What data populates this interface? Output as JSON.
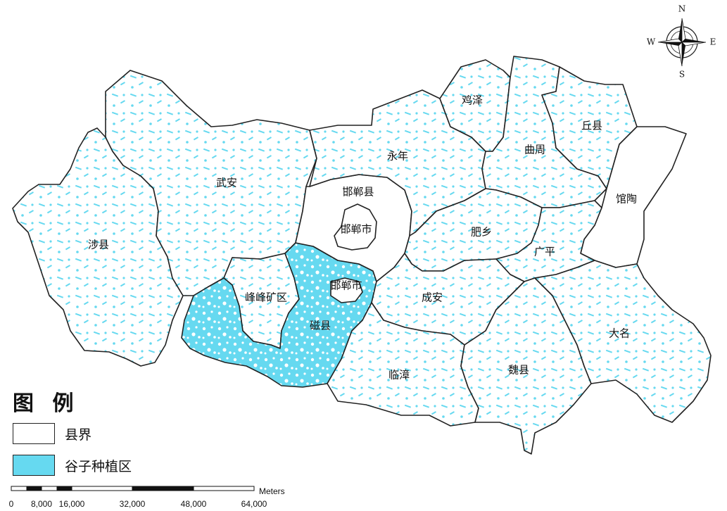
{
  "map": {
    "colors": {
      "millet_area": "#66d9f0",
      "county_fill": "#ffffff",
      "boundary": "#222222"
    },
    "counties": [
      {
        "id": "shexian",
        "label": "涉县",
        "millet": true
      },
      {
        "id": "wuan",
        "label": "武安",
        "millet": true
      },
      {
        "id": "fengfeng",
        "label": "峰峰矿区",
        "millet": true
      },
      {
        "id": "cixian",
        "label": "磁县",
        "millet": true
      },
      {
        "id": "handan-shi-south",
        "label": "邯郸市",
        "millet": true
      },
      {
        "id": "handan-xian",
        "label": "邯郸县",
        "millet": false
      },
      {
        "id": "handan-shi-center",
        "label": "邯郸市",
        "millet": false
      },
      {
        "id": "yongnian",
        "label": "永年",
        "millet": true
      },
      {
        "id": "jize",
        "label": "鸡泽",
        "millet": true
      },
      {
        "id": "quzhou",
        "label": "曲周",
        "millet": true
      },
      {
        "id": "qiuxian",
        "label": "丘县",
        "millet": true
      },
      {
        "id": "guantao",
        "label": "馆陶",
        "millet": false
      },
      {
        "id": "feixiang",
        "label": "肥乡",
        "millet": true
      },
      {
        "id": "guangping",
        "label": "广平",
        "millet": true
      },
      {
        "id": "chengan",
        "label": "成安",
        "millet": true
      },
      {
        "id": "linzhang",
        "label": "临漳",
        "millet": true
      },
      {
        "id": "weixian",
        "label": "魏县",
        "millet": true
      },
      {
        "id": "daming",
        "label": "大名",
        "millet": true
      }
    ]
  },
  "compass": {
    "n": "N",
    "s": "S",
    "e": "E",
    "w": "W"
  },
  "legend": {
    "title": "图 例",
    "items": [
      {
        "label": "县界",
        "swatch": "#ffffff"
      },
      {
        "label": "谷子种植区",
        "swatch": "#66d9f0"
      }
    ]
  },
  "scalebar": {
    "unit": "Meters",
    "ticks": [
      "0",
      "8,000",
      "16,000",
      "32,000",
      "48,000",
      "64,000"
    ]
  }
}
